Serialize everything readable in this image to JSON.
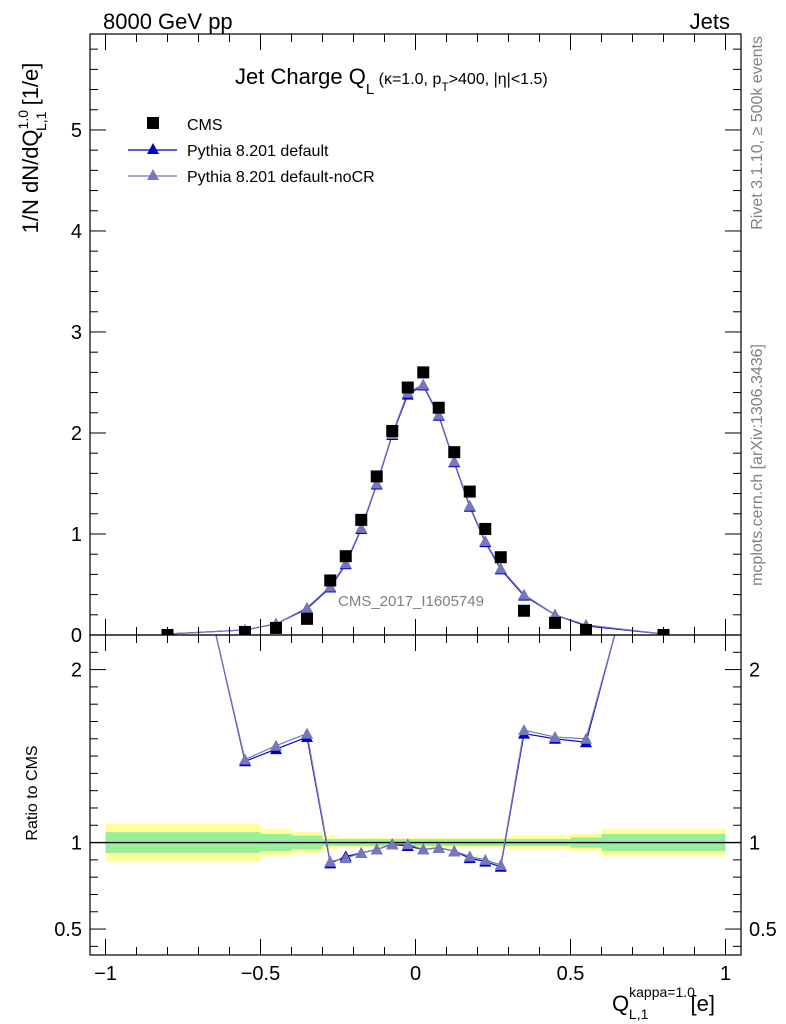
{
  "header": {
    "left": "8000 GeV pp",
    "right": "Jets"
  },
  "title": {
    "main": "Jet Charge Q",
    "main_sub": "L",
    "cond_a": " (κ=1.0, p",
    "cond_sub": "T",
    "cond_b": ">400, |η|<1.5)"
  },
  "side_labels": {
    "rivet": "Rivet 3.1.10, ≥ 500k events",
    "mcplots": "mcplots.cern.ch [arXiv:1306.3436]"
  },
  "watermark": "CMS_2017_I1605749",
  "ylabel_top": {
    "a": "1/N dN/dQ",
    "sup": "1.0",
    "sub": "L,1",
    "b": " [1/e]"
  },
  "ylabel_bottom": "Ratio to CMS",
  "xlabel": {
    "a": "Q",
    "sup": "kappa=1.0",
    "sub": "L,1",
    "b": " [e]"
  },
  "legend": [
    {
      "label": "CMS",
      "marker": "square",
      "color": "#000000"
    },
    {
      "label": "Pythia 8.201 default",
      "marker": "triangle",
      "color": "#0000cc"
    },
    {
      "label": "Pythia 8.201 default-noCR",
      "marker": "triangle",
      "color": "#7777bb"
    }
  ],
  "chart_data": [
    {
      "type": "scatter",
      "xlim": [
        -1.05,
        1.05
      ],
      "ylim": [
        0,
        5.95
      ],
      "x_ticks": [
        -1,
        -0.5,
        0,
        0.5,
        1
      ],
      "x_tick_labels": [
        "−1",
        "−0.5",
        "0",
        "0.5",
        "1"
      ],
      "y_ticks": [
        0,
        1,
        2,
        3,
        4,
        5
      ],
      "y_tick_labels": [
        "0",
        "1",
        "2",
        "3",
        "4",
        "5"
      ],
      "series": [
        {
          "name": "CMS",
          "color": "#000000",
          "x": [
            -0.8,
            -0.55,
            -0.45,
            -0.35,
            -0.275,
            -0.225,
            -0.175,
            -0.125,
            -0.075,
            -0.025,
            0.025,
            0.075,
            0.125,
            0.175,
            0.225,
            0.275,
            0.35,
            0.45,
            0.55,
            0.8
          ],
          "y": [
            0.0,
            0.03,
            0.07,
            0.16,
            0.54,
            0.78,
            1.14,
            1.57,
            2.02,
            2.45,
            2.6,
            2.25,
            1.81,
            1.42,
            1.05,
            0.77,
            0.24,
            0.12,
            0.05,
            0.0
          ]
        },
        {
          "name": "Pythia 8.201 default",
          "color": "#0000cc",
          "x": [
            -0.8,
            -0.55,
            -0.45,
            -0.35,
            -0.275,
            -0.225,
            -0.175,
            -0.125,
            -0.075,
            -0.025,
            0.025,
            0.075,
            0.125,
            0.175,
            0.225,
            0.275,
            0.35,
            0.45,
            0.55,
            0.8
          ],
          "y": [
            0.01,
            0.05,
            0.11,
            0.26,
            0.47,
            0.7,
            1.05,
            1.49,
            1.98,
            2.38,
            2.47,
            2.17,
            1.71,
            1.27,
            0.92,
            0.65,
            0.39,
            0.2,
            0.09,
            0.01
          ]
        },
        {
          "name": "Pythia 8.201 default-noCR",
          "color": "#7777bb",
          "x": [
            -0.8,
            -0.55,
            -0.45,
            -0.35,
            -0.275,
            -0.225,
            -0.175,
            -0.125,
            -0.075,
            -0.025,
            0.025,
            0.075,
            0.125,
            0.175,
            0.225,
            0.275,
            0.35,
            0.45,
            0.55,
            0.8
          ],
          "y": [
            0.01,
            0.05,
            0.11,
            0.27,
            0.48,
            0.71,
            1.06,
            1.5,
            1.99,
            2.4,
            2.48,
            2.18,
            1.72,
            1.28,
            0.93,
            0.66,
            0.4,
            0.2,
            0.1,
            0.01
          ]
        }
      ]
    },
    {
      "type": "line",
      "ylabel": "Ratio to CMS",
      "xlim": [
        -1.05,
        1.05
      ],
      "ylim": [
        0.35,
        2.2
      ],
      "x_ticks": [
        -1,
        -0.5,
        0,
        0.5,
        1
      ],
      "x_tick_labels": [
        "−1",
        "−0.5",
        "0",
        "0.5",
        "1"
      ],
      "y_ticks": [
        0.5,
        1,
        2
      ],
      "y_tick_labels": [
        "0.5",
        "1",
        "2"
      ],
      "reference_line": 1.0,
      "bands": {
        "x_edges": [
          -1.0,
          -0.6,
          -0.5,
          -0.4,
          -0.3,
          -0.25,
          -0.2,
          -0.15,
          -0.1,
          -0.05,
          0.0,
          0.05,
          0.1,
          0.15,
          0.2,
          0.25,
          0.3,
          0.4,
          0.5,
          0.6,
          1.0
        ],
        "yellow_half": [
          0.11,
          0.11,
          0.08,
          0.06,
          0.04,
          0.03,
          0.03,
          0.03,
          0.03,
          0.03,
          0.03,
          0.03,
          0.03,
          0.03,
          0.03,
          0.03,
          0.04,
          0.04,
          0.05,
          0.08
        ],
        "green_half": [
          0.06,
          0.06,
          0.05,
          0.04,
          0.02,
          0.02,
          0.02,
          0.02,
          0.02,
          0.02,
          0.02,
          0.02,
          0.02,
          0.02,
          0.02,
          0.02,
          0.02,
          0.02,
          0.03,
          0.05
        ],
        "yellow_color": "#ffff99",
        "green_color": "#99ee99"
      },
      "series": [
        {
          "name": "Pythia 8.201 default",
          "color": "#0000cc",
          "x": [
            -0.65,
            -0.55,
            -0.45,
            -0.35,
            -0.275,
            -0.225,
            -0.175,
            -0.125,
            -0.075,
            -0.025,
            0.025,
            0.075,
            0.125,
            0.175,
            0.225,
            0.275,
            0.35,
            0.45,
            0.55,
            0.65
          ],
          "y": [
            2.25,
            1.47,
            1.54,
            1.61,
            0.88,
            0.92,
            0.94,
            0.96,
            0.99,
            0.98,
            0.96,
            0.97,
            0.95,
            0.91,
            0.89,
            0.86,
            1.63,
            1.6,
            1.58,
            2.25
          ]
        },
        {
          "name": "Pythia 8.201 default-noCR",
          "color": "#7777bb",
          "x": [
            -0.65,
            -0.55,
            -0.45,
            -0.35,
            -0.275,
            -0.225,
            -0.175,
            -0.125,
            -0.075,
            -0.025,
            0.025,
            0.075,
            0.125,
            0.175,
            0.225,
            0.275,
            0.35,
            0.45,
            0.55,
            0.65
          ],
          "y": [
            2.25,
            1.48,
            1.56,
            1.63,
            0.89,
            0.91,
            0.94,
            0.96,
            0.99,
            0.99,
            0.96,
            0.97,
            0.95,
            0.92,
            0.9,
            0.87,
            1.65,
            1.61,
            1.6,
            2.25
          ]
        }
      ]
    }
  ]
}
